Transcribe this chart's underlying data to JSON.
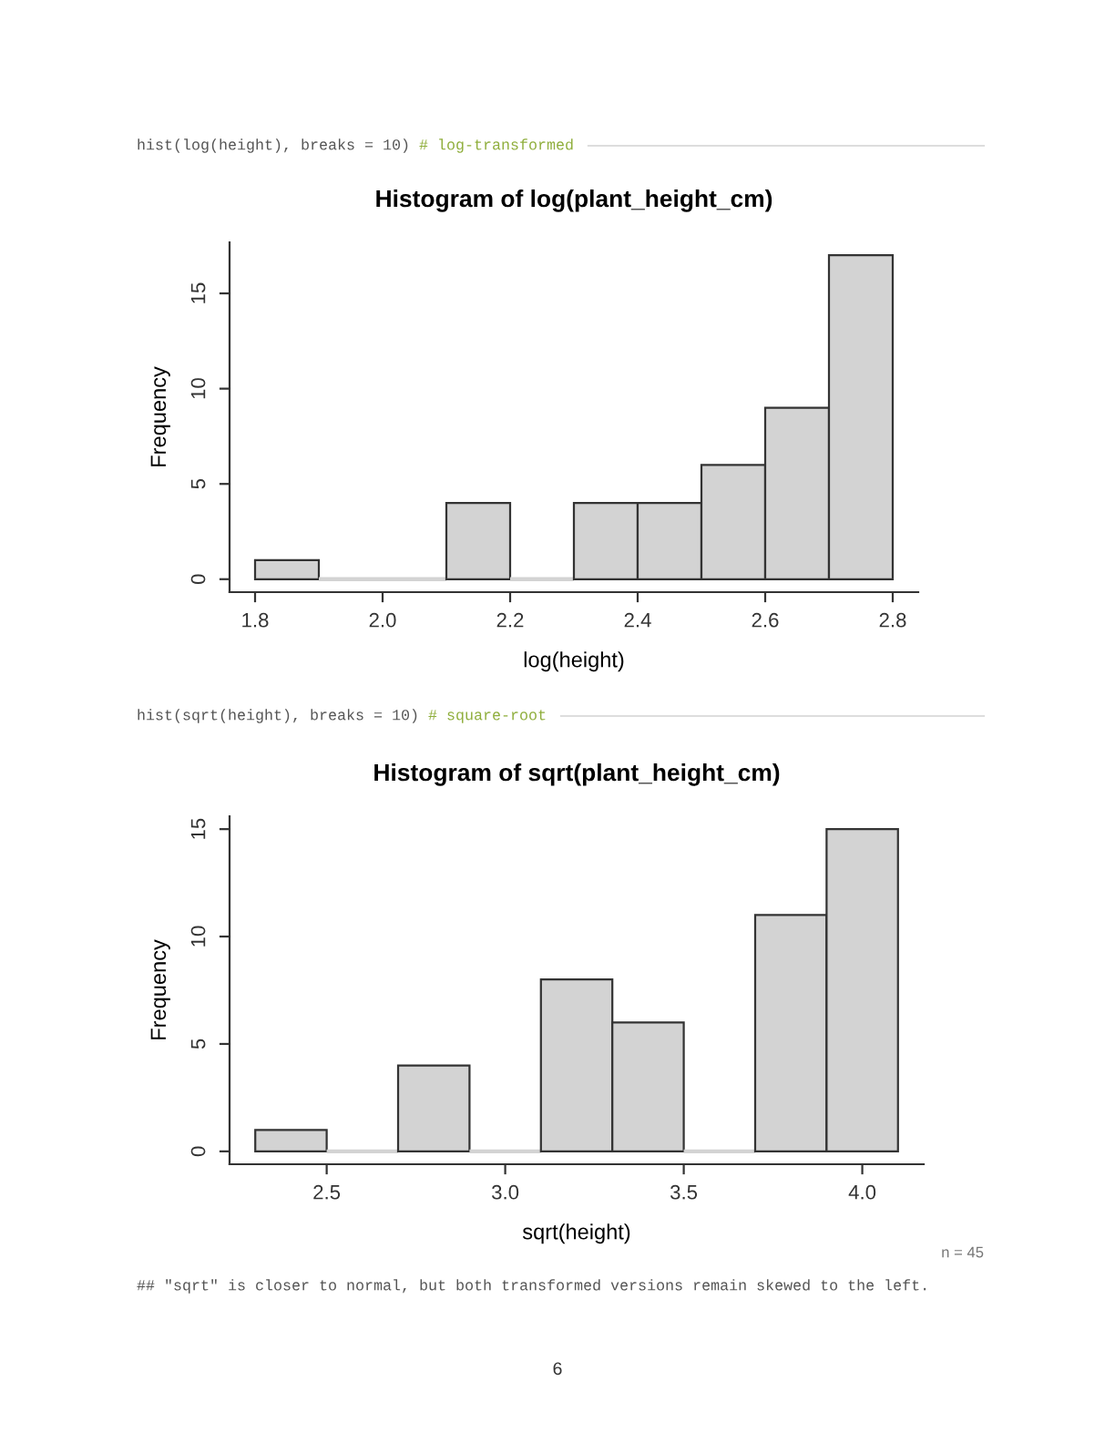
{
  "chart_data": [
    {
      "type": "histogram",
      "title": "Histogram of log(plant_height_cm)",
      "xlabel": "log(height)",
      "ylabel": "Frequency",
      "bins": [
        1.8,
        1.9,
        2.0,
        2.1,
        2.2,
        2.3,
        2.4,
        2.5,
        2.6,
        2.7,
        2.8
      ],
      "values": [
        1,
        0,
        0,
        4,
        0,
        4,
        4,
        6,
        9,
        17
      ],
      "color": "#d3d3d3",
      "xlim": [
        1.76,
        2.84
      ],
      "ylim": [
        -0.68,
        17.68
      ],
      "xticks": [
        1.8,
        {
          "value": 2,
          "label": "2.0"
        },
        2.2,
        2.4,
        2.6,
        2.8
      ],
      "yticks": [
        0,
        5,
        10,
        15
      ],
      "annotations": [
        "hist(log(height), breaks = 10)",
        "# log-transformed"
      ]
    },
    {
      "type": "histogram",
      "title": "Histogram of sqrt(plant_height_cm)",
      "xlabel": "sqrt(height)",
      "ylabel": "Frequency",
      "bins": [
        2.3,
        2.5,
        2.7,
        2.9,
        3.1,
        3.3,
        3.5,
        3.7,
        3.9,
        4.1
      ],
      "values": [
        1,
        0,
        4,
        0,
        8,
        6,
        0,
        11,
        15
      ],
      "color": "#d3d3d3",
      "xlim": [
        2.228,
        4.172
      ],
      "ylim": [
        -0.6,
        15.6
      ],
      "xticks": [
        2.5,
        {
          "value": 3,
          "label": "3.0"
        },
        3.5,
        {
          "value": 4,
          "label": "4.0"
        }
      ],
      "yticks": [
        0,
        5,
        10,
        15
      ],
      "annotations": [
        "hist(sqrt(height), breaks = 10)",
        "# square-root",
        "n = 45",
        "## \"sqrt\" is closer to normal, but both transformed versions remain skewed to the left.",
        "6"
      ]
    }
  ]
}
